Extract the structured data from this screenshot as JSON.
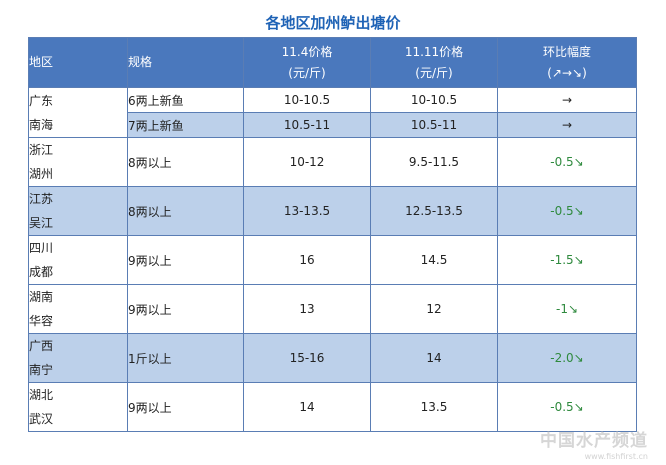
{
  "title": "各地区加州鲈出塘价",
  "header": {
    "region": "地区",
    "spec": "规格",
    "price1_line1": "11.4价格",
    "price1_line2": "(元/斤)",
    "price2_line1": "11.11价格",
    "price2_line2": "(元/斤)",
    "change_line1": "环比幅度",
    "change_line2": "(↗→↘)"
  },
  "rows": [
    {
      "region1": "广东",
      "region2": "南海",
      "spec": "6两上新鱼",
      "price1": "10-10.5",
      "price2": "10-10.5",
      "change": "→"
    },
    {
      "spec": "7两上新鱼",
      "price1": "10.5-11",
      "price2": "10.5-11",
      "change": "→"
    },
    {
      "region1": "浙江",
      "region2": "湖州",
      "spec": "8两以上",
      "price1": "10-12",
      "price2": "9.5-11.5",
      "change": "-0.5↘"
    },
    {
      "region1": "江苏",
      "region2": "吴江",
      "spec": "8两以上",
      "price1": "13-13.5",
      "price2": "12.5-13.5",
      "change": "-0.5↘"
    },
    {
      "region1": "四川",
      "region2": "成都",
      "spec": "9两以上",
      "price1": "16",
      "price2": "14.5",
      "change": "-1.5↘"
    },
    {
      "region1": "湖南",
      "region2": "华容",
      "spec": "9两以上",
      "price1": "13",
      "price2": "12",
      "change": "-1↘"
    },
    {
      "region1": "广西",
      "region2": "南宁",
      "spec": "1斤以上",
      "price1": "15-16",
      "price2": "14",
      "change": "-2.0↘"
    },
    {
      "region1": "湖北",
      "region2": "武汉",
      "spec": "9两以上",
      "price1": "14",
      "price2": "13.5",
      "change": "-0.5↘"
    }
  ],
  "watermark": "中国水产频道",
  "watermark_url": "www.fishfirst.cn",
  "colors": {
    "header_bg": "#4a78bd",
    "shade_bg": "#bcd0ea",
    "down": "#2f8a3e",
    "title": "#1f63b6"
  }
}
